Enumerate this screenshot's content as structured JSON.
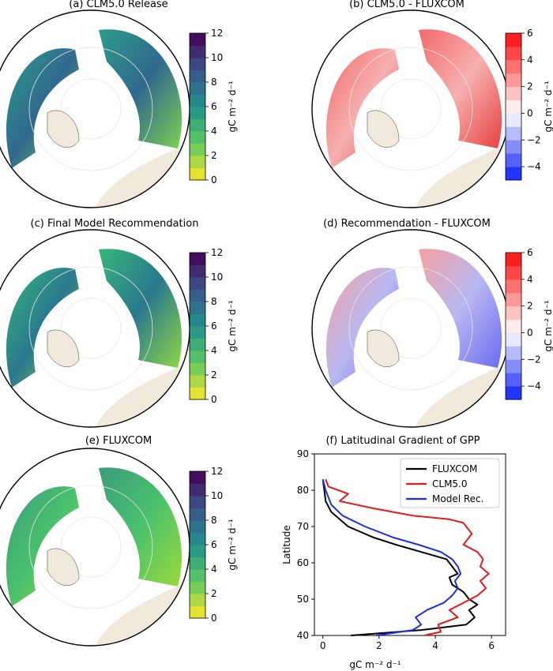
{
  "panels": {
    "a": {
      "title": "(a) CLM5.0 Release"
    },
    "b": {
      "title": "(b) CLM5.0 - FLUXCOM"
    },
    "c": {
      "title": "(c) Final Model Recommendation"
    },
    "d": {
      "title": "(d) Recommendation - FLUXCOM"
    },
    "e": {
      "title": "(e) FLUXCOM"
    },
    "f": {
      "title": "(f) Latitudinal Gradient of GPP"
    }
  },
  "colorbars": {
    "gpp": {
      "label": "gC m⁻² d⁻¹",
      "ticks": [
        "0",
        "2",
        "4",
        "6",
        "8",
        "10",
        "12"
      ],
      "range": [
        0,
        12
      ]
    },
    "diff": {
      "label": "gC m⁻² d⁻¹",
      "ticks": [
        "−4",
        "−2",
        "0",
        "2",
        "4",
        "6"
      ],
      "range": [
        -5,
        6
      ]
    }
  },
  "colors": {
    "land": "#efeadc",
    "viridis_low": "#d8e219",
    "viridis_high": "#3b1c5b",
    "diff_neg": "#0a1cff",
    "diff_pos": "#ff0a0a",
    "fluxcom": "#000000",
    "clm50": "#e41a1c",
    "model_rec": "#1f2fe0"
  },
  "chart_data": [
    {
      "type": "heatmap",
      "title": "(a) CLM5.0 Release",
      "projection": "north-polar-stereographic",
      "colormap": "viridis_r",
      "colorbar_label": "gC m⁻² d⁻¹",
      "clim": [
        0,
        12
      ],
      "colorbar_ticks": [
        0,
        2,
        4,
        6,
        8,
        10,
        12
      ]
    },
    {
      "type": "heatmap",
      "title": "(b) CLM5.0 - FLUXCOM",
      "projection": "north-polar-stereographic",
      "colormap": "bwr",
      "colorbar_label": "gC m⁻² d⁻¹",
      "clim": [
        -5,
        6
      ],
      "colorbar_ticks": [
        -4,
        -2,
        0,
        2,
        4,
        6
      ]
    },
    {
      "type": "heatmap",
      "title": "(c) Final Model Recommendation",
      "projection": "north-polar-stereographic",
      "colormap": "viridis_r",
      "colorbar_label": "gC m⁻² d⁻¹",
      "clim": [
        0,
        12
      ],
      "colorbar_ticks": [
        0,
        2,
        4,
        6,
        8,
        10,
        12
      ]
    },
    {
      "type": "heatmap",
      "title": "(d) Recommendation - FLUXCOM",
      "projection": "north-polar-stereographic",
      "colormap": "bwr",
      "colorbar_label": "gC m⁻² d⁻¹",
      "clim": [
        -5,
        6
      ],
      "colorbar_ticks": [
        -4,
        -2,
        0,
        2,
        4,
        6
      ]
    },
    {
      "type": "heatmap",
      "title": "(e) FLUXCOM",
      "projection": "north-polar-stereographic",
      "colormap": "viridis_r",
      "colorbar_label": "gC m⁻² d⁻¹",
      "clim": [
        0,
        12
      ],
      "colorbar_ticks": [
        0,
        2,
        4,
        6,
        8,
        10,
        12
      ]
    },
    {
      "type": "line",
      "title": "(f) Latitudinal Gradient of GPP",
      "xlabel": "gC m⁻² d⁻¹",
      "ylabel": "Latitude",
      "xlim": [
        -0.3,
        6.5
      ],
      "ylim": [
        40,
        90
      ],
      "xticks": [
        0,
        2,
        4,
        6
      ],
      "yticks": [
        40,
        50,
        60,
        70,
        80,
        90
      ],
      "legend_position": "top-right",
      "series": [
        {
          "name": "FLUXCOM",
          "color": "#000000",
          "x": [
            1.0,
            3.5,
            5.1,
            5.4,
            5.2,
            5.5,
            5.2,
            5.0,
            4.6,
            4.5,
            4.8,
            4.7,
            4.4,
            3.5,
            2.6,
            1.8,
            0.9,
            0.3,
            0.1,
            0.05,
            0.0
          ],
          "y": [
            40,
            41.5,
            43,
            45,
            47,
            48.5,
            50,
            52,
            54,
            56,
            57,
            58,
            61,
            63,
            65,
            67,
            70,
            74,
            77,
            80,
            83
          ]
        },
        {
          "name": "CLM5.0",
          "color": "#e41a1c",
          "x": [
            3.6,
            4.2,
            4.1,
            4.8,
            4.5,
            5.0,
            5.5,
            5.8,
            5.6,
            5.9,
            5.6,
            5.7,
            5.5,
            5.0,
            5.3,
            5.0,
            4.5,
            3.2,
            1.8,
            0.6,
            0.9,
            0.2,
            0.1
          ],
          "y": [
            40,
            41,
            43,
            45,
            47,
            49,
            51,
            53,
            55,
            57,
            59,
            61,
            63,
            65,
            68,
            71,
            72,
            73,
            75,
            77,
            79,
            81,
            83
          ]
        },
        {
          "name": "Model Rec.",
          "color": "#1f2fe0",
          "x": [
            1.9,
            3.2,
            3.5,
            3.3,
            3.7,
            4.3,
            4.6,
            4.8,
            4.7,
            4.9,
            4.8,
            4.6,
            4.2,
            3.4,
            2.5,
            1.5,
            0.7,
            0.3,
            0.1,
            0.0
          ],
          "y": [
            40,
            41.5,
            43,
            45,
            47,
            49,
            51,
            53,
            55,
            57,
            59,
            61,
            63,
            65,
            67,
            70,
            73,
            76,
            80,
            83
          ]
        }
      ]
    }
  ]
}
